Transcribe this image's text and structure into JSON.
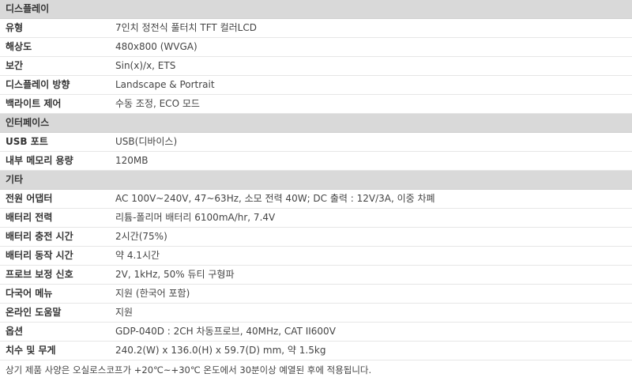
{
  "sections": [
    {
      "title": "디스플레이",
      "rows": [
        {
          "label": "유형",
          "value": "7인치 정전식 풀터치 TFT 컬러LCD"
        },
        {
          "label": "해상도",
          "value": "480x800 (WVGA)"
        },
        {
          "label": "보간",
          "value": "Sin(x)/x, ETS"
        },
        {
          "label": "디스플레이 방향",
          "value": "Landscape & Portrait"
        },
        {
          "label": "백라이트 제어",
          "value": "수동 조정, ECO 모드"
        }
      ]
    },
    {
      "title": "인터페이스",
      "rows": [
        {
          "label": "USB 포트",
          "value": "USB(디바이스)"
        },
        {
          "label": "내부 메모리 용량",
          "value": "120MB"
        }
      ]
    },
    {
      "title": "기타",
      "rows": [
        {
          "label": "전원 어댑터",
          "value": "AC 100V~240V, 47~63Hz, 소모 전력 40W; DC 출력 : 12V/3A, 이중 차폐"
        },
        {
          "label": "배터리 전력",
          "value": "리튬-폴리머 배터리 6100mA/hr, 7.4V"
        },
        {
          "label": "배터리 충전 시간",
          "value": "2시간(75%)"
        },
        {
          "label": "배터리 동작 시간",
          "value": "약 4.1시간"
        },
        {
          "label": "프로브 보정 신호",
          "value": "2V, 1kHz, 50% 듀티 구형파"
        },
        {
          "label": "다국어 메뉴",
          "value": "지원 (한국어 포함)"
        },
        {
          "label": "온라인 도움말",
          "value": "지원"
        },
        {
          "label": "옵션",
          "value": "GDP-040D : 2CH 차동프로브, 40MHz, CAT II600V"
        },
        {
          "label": "치수 및 무게",
          "value": "240.2(W) x 136.0(H) x 59.7(D) mm, 약 1.5kg"
        }
      ]
    }
  ],
  "footnote": "상기 제품 사양은 오실로스코프가 +20℃~+30℃ 온도에서 30분이상 예열된 후에 적용됩니다."
}
